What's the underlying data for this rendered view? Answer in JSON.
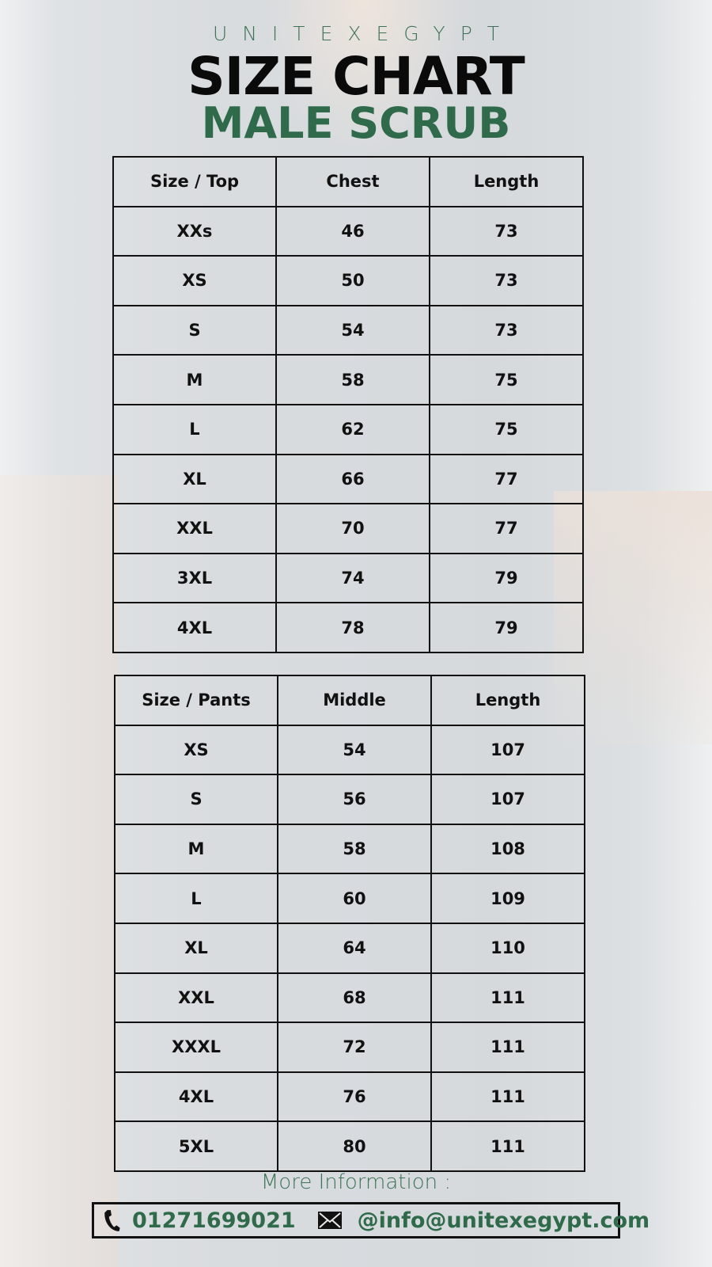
{
  "brand": "UNITEXEGYPT",
  "title": "SIZE CHART",
  "subtitle": "MALE SCRUB",
  "top_table": {
    "headers": [
      "Size / Top",
      "Chest",
      "Length"
    ],
    "rows": [
      [
        "XXs",
        "46",
        "73"
      ],
      [
        "XS",
        "50",
        "73"
      ],
      [
        "S",
        "54",
        "73"
      ],
      [
        "M",
        "58",
        "75"
      ],
      [
        "L",
        "62",
        "75"
      ],
      [
        "XL",
        "66",
        "77"
      ],
      [
        "XXL",
        "70",
        "77"
      ],
      [
        "3XL",
        "74",
        "79"
      ],
      [
        "4XL",
        "78",
        "79"
      ]
    ]
  },
  "pants_table": {
    "headers": [
      "Size / Pants",
      "Middle",
      "Length"
    ],
    "rows": [
      [
        "XS",
        "54",
        "107"
      ],
      [
        "S",
        "56",
        "107"
      ],
      [
        "M",
        "58",
        "108"
      ],
      [
        "L",
        "60",
        "109"
      ],
      [
        "XL",
        "64",
        "110"
      ],
      [
        "XXL",
        "68",
        "111"
      ],
      [
        "XXXL",
        "72",
        "111"
      ],
      [
        "4XL",
        "76",
        "111"
      ],
      [
        "5XL",
        "80",
        "111"
      ]
    ]
  },
  "footer": {
    "more_info": "More Information :",
    "phone_icon": "phone-icon",
    "phone": "01271699021",
    "email_icon": "envelope-icon",
    "email": "@info@unitexegypt.com"
  },
  "colors": {
    "green": "#2f6b4a",
    "brand_green": "#3f7358"
  }
}
